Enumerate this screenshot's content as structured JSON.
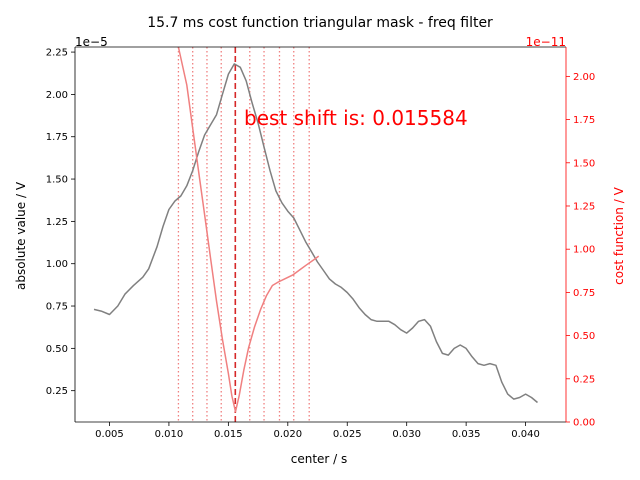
{
  "chart_data": {
    "type": "line",
    "title": "15.7 ms cost function triangular mask - freq filter",
    "xlabel": "center / s",
    "ylabel_left": "absolute value / V",
    "ylabel_right": "cost function / V",
    "offset_left": "1e−5",
    "offset_right": "1e−11",
    "annotation": "best shift is: 0.015584",
    "best_shift": 0.015584,
    "xlim": [
      0.0021,
      0.0434
    ],
    "ylim_left": [
      0.065,
      2.28
    ],
    "ylim_right": [
      0.0,
      2.17
    ],
    "x_ticks": [
      0.005,
      0.01,
      0.015,
      0.02,
      0.025,
      0.03,
      0.035,
      0.04
    ],
    "x_tick_labels": [
      "0.005",
      "0.010",
      "0.015",
      "0.020",
      "0.025",
      "0.030",
      "0.035",
      "0.040"
    ],
    "y_left_ticks": [
      0.25,
      0.5,
      0.75,
      1.0,
      1.25,
      1.5,
      1.75,
      2.0,
      2.25
    ],
    "y_left_tick_labels": [
      "0.25",
      "0.50",
      "0.75",
      "1.00",
      "1.25",
      "1.50",
      "1.75",
      "2.00",
      "2.25"
    ],
    "y_right_ticks": [
      0.0,
      0.25,
      0.5,
      0.75,
      1.0,
      1.25,
      1.5,
      1.75,
      2.0
    ],
    "y_right_tick_labels": [
      "0.00",
      "0.25",
      "0.50",
      "0.75",
      "1.00",
      "1.25",
      "1.50",
      "1.75",
      "2.00"
    ],
    "mask_lines": [
      0.0108,
      0.012,
      0.0132,
      0.0144,
      0.0168,
      0.018,
      0.0193,
      0.0205,
      0.0218
    ],
    "colors": {
      "signal": "#808080",
      "cost": "#f08080",
      "best_line": "#d62728",
      "mask_line": "#f08080",
      "right_axis": "#ff0000"
    },
    "series": [
      {
        "axis": "left",
        "x": [
          0.0037,
          0.0043,
          0.005,
          0.0057,
          0.0063,
          0.007,
          0.0078,
          0.0083,
          0.009,
          0.0095,
          0.01,
          0.0105,
          0.011,
          0.0115,
          0.012,
          0.0125,
          0.013,
          0.0135,
          0.014,
          0.0145,
          0.015,
          0.0155,
          0.016,
          0.0165,
          0.017,
          0.0175,
          0.018,
          0.0185,
          0.019,
          0.0195,
          0.02,
          0.0205,
          0.021,
          0.0215,
          0.022,
          0.0225,
          0.023,
          0.0235,
          0.024,
          0.0245,
          0.025,
          0.0255,
          0.026,
          0.0265,
          0.027,
          0.0275,
          0.028,
          0.0285,
          0.029,
          0.0295,
          0.03,
          0.0305,
          0.031,
          0.0315,
          0.032,
          0.0325,
          0.033,
          0.0335,
          0.034,
          0.0345,
          0.035,
          0.0355,
          0.036,
          0.0365,
          0.037,
          0.0375,
          0.038,
          0.0385,
          0.039,
          0.0395,
          0.04,
          0.0405,
          0.041
        ],
        "y": [
          0.73,
          0.72,
          0.7,
          0.75,
          0.82,
          0.87,
          0.92,
          0.97,
          1.1,
          1.22,
          1.32,
          1.37,
          1.4,
          1.46,
          1.55,
          1.66,
          1.76,
          1.82,
          1.88,
          2.0,
          2.12,
          2.18,
          2.16,
          2.08,
          1.95,
          1.83,
          1.69,
          1.55,
          1.43,
          1.36,
          1.31,
          1.27,
          1.2,
          1.13,
          1.07,
          1.01,
          0.96,
          0.91,
          0.88,
          0.86,
          0.83,
          0.79,
          0.74,
          0.7,
          0.67,
          0.66,
          0.66,
          0.66,
          0.64,
          0.61,
          0.59,
          0.62,
          0.66,
          0.67,
          0.63,
          0.54,
          0.47,
          0.46,
          0.5,
          0.52,
          0.5,
          0.45,
          0.41,
          0.4,
          0.41,
          0.4,
          0.3,
          0.23,
          0.2,
          0.21,
          0.23,
          0.21,
          0.18
        ]
      },
      {
        "axis": "right",
        "x": [
          0.0108,
          0.0115,
          0.012,
          0.0125,
          0.013,
          0.0135,
          0.014,
          0.0145,
          0.015,
          0.0153,
          0.0156,
          0.0159,
          0.0163,
          0.0167,
          0.0172,
          0.0177,
          0.0182,
          0.0187,
          0.0192,
          0.0198,
          0.0204,
          0.021,
          0.0216,
          0.0222,
          0.0226
        ],
        "y": [
          2.17,
          1.95,
          1.7,
          1.45,
          1.2,
          0.95,
          0.7,
          0.48,
          0.28,
          0.15,
          0.06,
          0.15,
          0.3,
          0.43,
          0.55,
          0.65,
          0.73,
          0.79,
          0.81,
          0.83,
          0.85,
          0.88,
          0.91,
          0.94,
          0.96
        ]
      }
    ]
  }
}
